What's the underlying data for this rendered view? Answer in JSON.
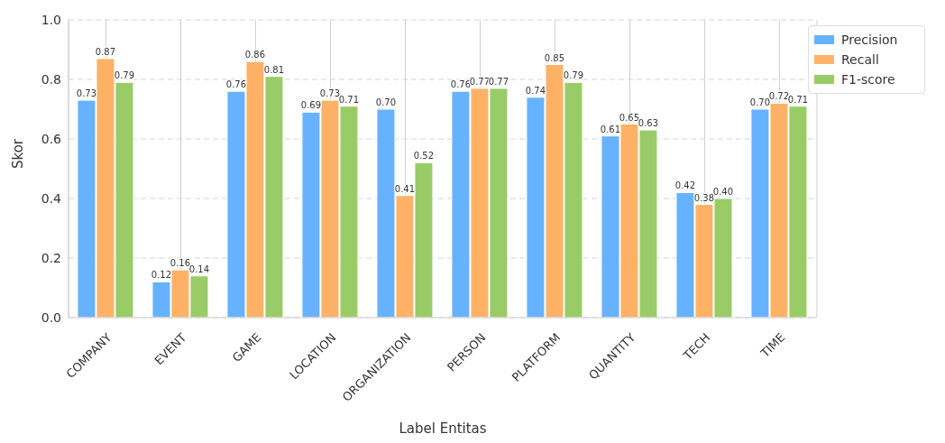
{
  "chart_data": {
    "type": "bar",
    "xlabel": "Label Entitas",
    "ylabel": "Skor",
    "categories": [
      "COMPANY",
      "EVENT",
      "GAME",
      "LOCATION",
      "ORGANIZATION",
      "PERSON",
      "PLATFORM",
      "QUANTITY",
      "TECH",
      "TIME"
    ],
    "series": [
      {
        "name": "Precision",
        "color": "#66b2ff",
        "values": [
          0.73,
          0.12,
          0.76,
          0.69,
          0.7,
          0.76,
          0.74,
          0.61,
          0.42,
          0.7
        ],
        "value_labels": [
          "0.73",
          "0.12",
          "0.76",
          "0.69",
          "0.70",
          "0.76",
          "0.74",
          "0.61",
          "0.42",
          "0.70"
        ]
      },
      {
        "name": "Recall",
        "color": "#ffb266",
        "values": [
          0.87,
          0.16,
          0.86,
          0.73,
          0.41,
          0.77,
          0.85,
          0.65,
          0.38,
          0.72
        ],
        "value_labels": [
          "0.87",
          "0.16",
          "0.86",
          "0.73",
          "0.41",
          "0.77",
          "0.85",
          "0.65",
          "0.38",
          "0.72"
        ]
      },
      {
        "name": "F1-score",
        "color": "#99cc66",
        "values": [
          0.79,
          0.14,
          0.81,
          0.71,
          0.52,
          0.77,
          0.79,
          0.63,
          0.4,
          0.71
        ],
        "value_labels": [
          "0.79",
          "0.14",
          "0.81",
          "0.71",
          "0.52",
          "0.77",
          "0.79",
          "0.63",
          "0.40",
          "0.71"
        ]
      }
    ],
    "ylim": [
      0,
      1
    ],
    "yticks": [
      {
        "value": 0,
        "label": "0.0"
      },
      0.2,
      0.4,
      0.6,
      0.8,
      {
        "value": 1,
        "label": "1.0"
      }
    ],
    "grid": true,
    "legend": "top right"
  }
}
